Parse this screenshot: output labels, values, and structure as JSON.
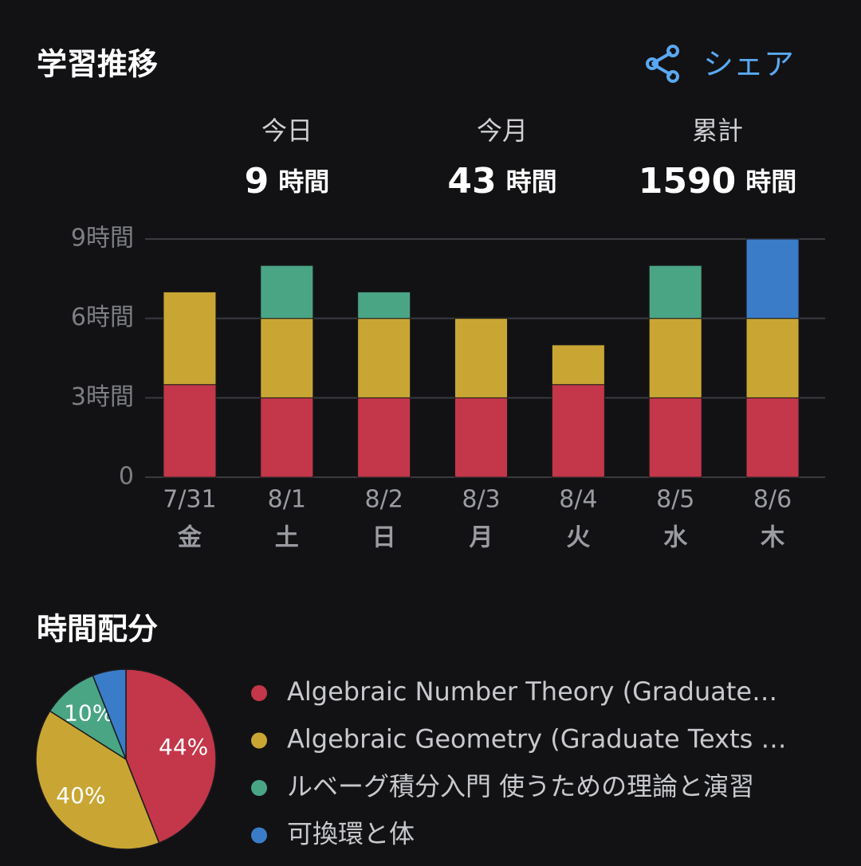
{
  "header": {
    "share": "シェア"
  },
  "stats": [
    {
      "label": "今日",
      "value": 9,
      "unit": "時間"
    },
    {
      "label": "今月",
      "value": 43,
      "unit": "時間"
    },
    {
      "label": "累計",
      "value": 1590,
      "unit": "時間"
    }
  ],
  "chart_data": [
    {
      "type": "bar",
      "stacked": true,
      "title": "学習推移",
      "categories": [
        "7/31",
        "8/1",
        "8/2",
        "8/3",
        "8/4",
        "8/5",
        "8/6"
      ],
      "weekdays": [
        "金",
        "土",
        "日",
        "月",
        "火",
        "水",
        "木"
      ],
      "series": [
        {
          "color": "#c4364a",
          "values": [
            3.5,
            3,
            3,
            3,
            3.5,
            3,
            3
          ]
        },
        {
          "color": "#c9a634",
          "values": [
            3.5,
            3,
            3,
            3,
            1.5,
            3,
            3
          ]
        },
        {
          "color": "#4aa585",
          "values": [
            0,
            2,
            1,
            0,
            0,
            2,
            0
          ]
        },
        {
          "color": "#3a7cc8",
          "values": [
            0,
            0,
            0,
            0,
            0,
            0,
            3
          ]
        }
      ],
      "ylim": [
        0,
        9
      ],
      "yticks": [
        0,
        {
          "value": 3,
          "label": "3時間"
        },
        {
          "value": 6,
          "label": "6時間"
        },
        {
          "value": 9,
          "label": "9時間"
        }
      ],
      "grid": true
    },
    {
      "type": "pie",
      "title": "時間配分",
      "series": [
        {
          "name": "Algebraic Number Theory (Graduate…",
          "color": "#c4364a"
        },
        {
          "name": "Algebraic Geometry (Graduate Texts …",
          "color": "#c9a634"
        },
        {
          "name": "ルベーグ積分入門 使うための理論と演習",
          "color": "#4aa585"
        },
        {
          "name": "可換環と体",
          "color": "#3a7cc8"
        }
      ],
      "values": [
        44,
        40,
        10,
        6
      ],
      "value_labels": [
        "44%",
        "40%",
        "10%",
        null
      ]
    }
  ]
}
